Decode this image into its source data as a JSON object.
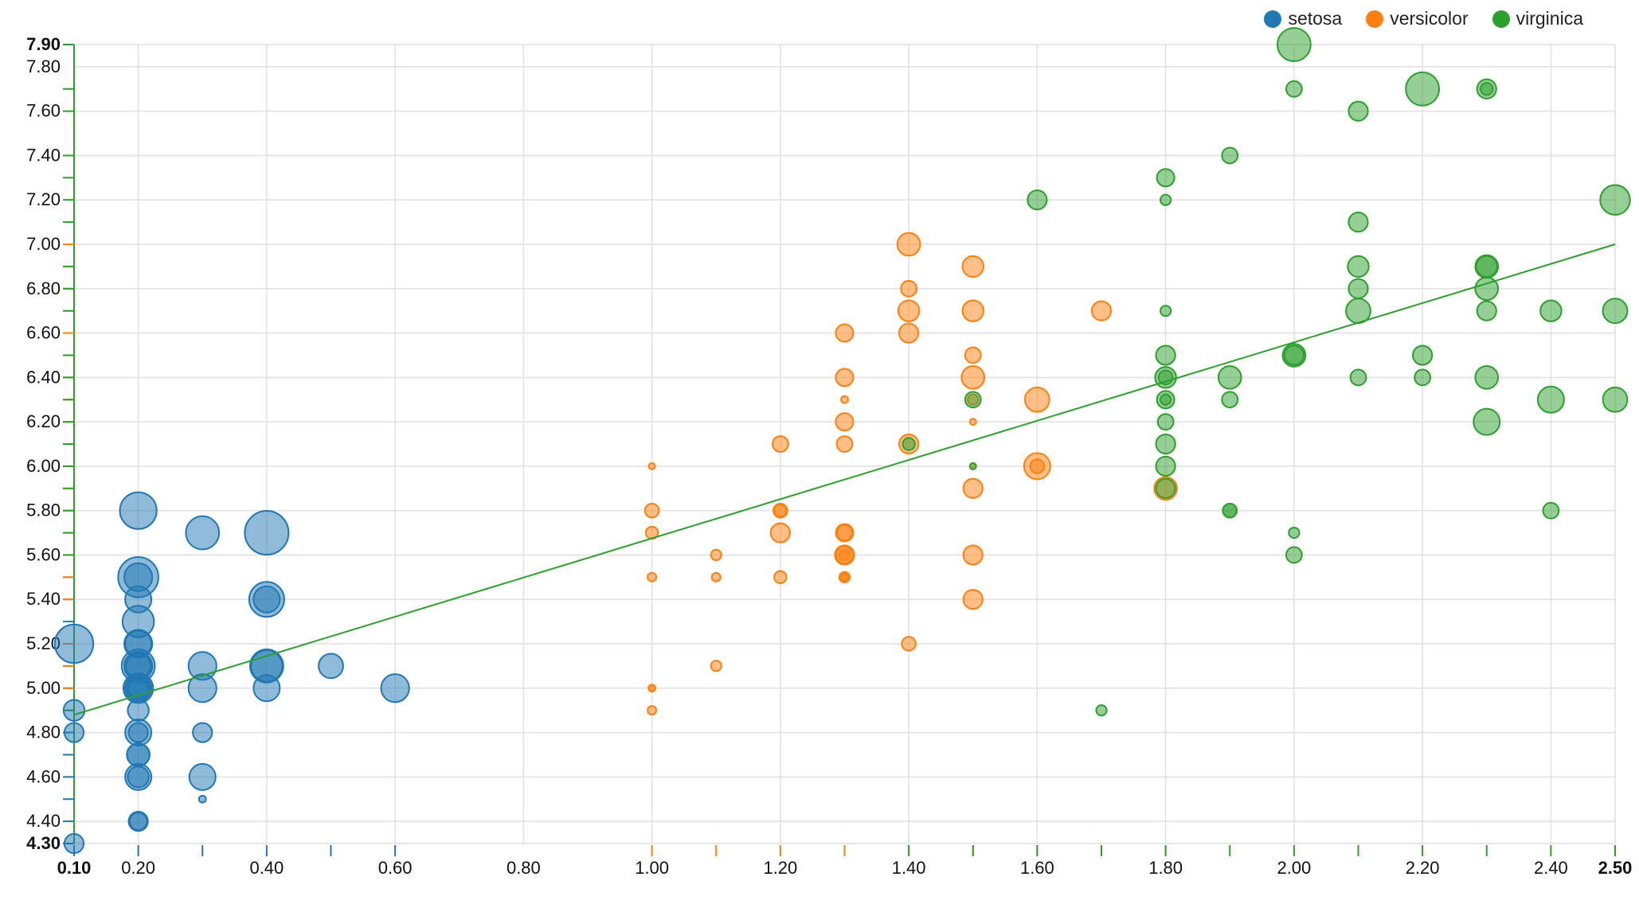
{
  "chart_data": {
    "type": "scatter",
    "title": "",
    "xlabel": "",
    "ylabel": "",
    "xlim": [
      0.1,
      2.5
    ],
    "ylim": [
      4.3,
      7.9
    ],
    "x_ticks": [
      "0.10",
      "0.20",
      "0.40",
      "0.60",
      "0.80",
      "1.00",
      "1.20",
      "1.40",
      "1.60",
      "1.80",
      "2.00",
      "2.20",
      "2.40",
      "2.50"
    ],
    "y_ticks": [
      "4.30",
      "4.40",
      "4.60",
      "4.80",
      "5.00",
      "5.20",
      "5.40",
      "5.60",
      "5.80",
      "6.00",
      "6.20",
      "6.40",
      "6.60",
      "6.80",
      "7.00",
      "7.20",
      "7.40",
      "7.60",
      "7.80",
      "7.90"
    ],
    "grid": true,
    "legend_position": "top-right",
    "trendline": {
      "x1": 0.1,
      "y1": 4.88,
      "x2": 2.5,
      "y2": 7.0,
      "color": "#2ca02c"
    },
    "series": [
      {
        "name": "setosa",
        "color": "#1f77b4",
        "points": [
          [
            0.1,
            4.3,
            3.0
          ],
          [
            0.1,
            4.9,
            3.1
          ],
          [
            0.1,
            4.8,
            3.0
          ],
          [
            0.1,
            5.2,
            4.1
          ],
          [
            0.2,
            5.8,
            4.0
          ],
          [
            0.2,
            5.5,
            3.5
          ],
          [
            0.2,
            5.5,
            4.2
          ],
          [
            0.2,
            5.4,
            3.4
          ],
          [
            0.2,
            5.3,
            3.7
          ],
          [
            0.2,
            5.2,
            3.5
          ],
          [
            0.2,
            5.2,
            3.4
          ],
          [
            0.2,
            5.1,
            3.5
          ],
          [
            0.2,
            5.1,
            3.3
          ],
          [
            0.2,
            5.1,
            3.8
          ],
          [
            0.2,
            5.0,
            3.6
          ],
          [
            0.2,
            5.0,
            3.4
          ],
          [
            0.2,
            5.0,
            3.2
          ],
          [
            0.2,
            5.0,
            3.0
          ],
          [
            0.2,
            4.9,
            3.1
          ],
          [
            0.2,
            4.8,
            3.4
          ],
          [
            0.2,
            4.8,
            3.0
          ],
          [
            0.2,
            4.7,
            3.2
          ],
          [
            0.2,
            4.7,
            3.2
          ],
          [
            0.2,
            4.6,
            3.4
          ],
          [
            0.2,
            4.6,
            3.1
          ],
          [
            0.2,
            4.4,
            2.9
          ],
          [
            0.2,
            4.4,
            3.0
          ],
          [
            0.3,
            5.7,
            3.8
          ],
          [
            0.3,
            5.1,
            3.5
          ],
          [
            0.3,
            5.0,
            3.5
          ],
          [
            0.3,
            4.8,
            3.0
          ],
          [
            0.3,
            4.6,
            3.4
          ],
          [
            0.3,
            4.5,
            2.3
          ],
          [
            0.4,
            5.7,
            4.4
          ],
          [
            0.4,
            5.4,
            3.9
          ],
          [
            0.4,
            5.4,
            3.4
          ],
          [
            0.4,
            5.1,
            3.8
          ],
          [
            0.4,
            5.1,
            3.7
          ],
          [
            0.4,
            5.0,
            3.4
          ],
          [
            0.5,
            5.1,
            3.3
          ],
          [
            0.6,
            5.0,
            3.5
          ]
        ]
      },
      {
        "name": "versicolor",
        "color": "#ff7f0e",
        "points": [
          [
            1.0,
            6.0,
            2.2
          ],
          [
            1.0,
            5.8,
            2.7
          ],
          [
            1.0,
            5.7,
            2.6
          ],
          [
            1.0,
            5.5,
            2.4
          ],
          [
            1.0,
            5.0,
            2.3
          ],
          [
            1.0,
            5.0,
            2.0
          ],
          [
            1.0,
            4.9,
            2.4
          ],
          [
            1.1,
            5.6,
            2.5
          ],
          [
            1.1,
            5.5,
            2.4
          ],
          [
            1.1,
            5.1,
            2.5
          ],
          [
            1.2,
            6.1,
            2.8
          ],
          [
            1.2,
            5.8,
            2.7
          ],
          [
            1.2,
            5.8,
            2.6
          ],
          [
            1.2,
            5.7,
            3.0
          ],
          [
            1.2,
            5.5,
            2.6
          ],
          [
            1.3,
            6.6,
            2.9
          ],
          [
            1.3,
            6.4,
            2.9
          ],
          [
            1.3,
            6.3,
            2.3
          ],
          [
            1.3,
            6.2,
            2.9
          ],
          [
            1.3,
            6.1,
            2.8
          ],
          [
            1.3,
            5.7,
            2.8
          ],
          [
            1.3,
            5.7,
            2.9
          ],
          [
            1.3,
            5.6,
            2.9
          ],
          [
            1.3,
            5.6,
            3.0
          ],
          [
            1.3,
            5.6,
            2.5
          ],
          [
            1.3,
            5.5,
            2.5
          ],
          [
            1.3,
            5.5,
            2.3
          ],
          [
            1.3,
            5.5,
            2.3
          ],
          [
            1.4,
            7.0,
            3.2
          ],
          [
            1.4,
            6.8,
            2.8
          ],
          [
            1.4,
            6.7,
            3.1
          ],
          [
            1.4,
            6.6,
            3.0
          ],
          [
            1.4,
            6.1,
            3.0
          ],
          [
            1.4,
            5.2,
            2.7
          ],
          [
            1.5,
            6.9,
            3.1
          ],
          [
            1.5,
            6.7,
            3.1
          ],
          [
            1.5,
            6.5,
            2.8
          ],
          [
            1.5,
            6.4,
            3.2
          ],
          [
            1.5,
            6.3,
            2.5
          ],
          [
            1.5,
            6.2,
            2.2
          ],
          [
            1.5,
            6.0,
            2.2
          ],
          [
            1.5,
            5.9,
            3.0
          ],
          [
            1.5,
            5.6,
            3.0
          ],
          [
            1.5,
            5.4,
            3.0
          ],
          [
            1.6,
            6.3,
            3.3
          ],
          [
            1.6,
            6.0,
            3.4
          ],
          [
            1.6,
            6.0,
            2.7
          ],
          [
            1.7,
            6.7,
            3.0
          ],
          [
            1.8,
            5.9,
            3.2
          ]
        ]
      },
      {
        "name": "virginica",
        "color": "#2ca02c",
        "points": [
          [
            1.4,
            6.1,
            2.6
          ],
          [
            1.5,
            6.3,
            2.8
          ],
          [
            1.5,
            6.0,
            2.2
          ],
          [
            1.6,
            7.2,
            3.0
          ],
          [
            1.7,
            4.9,
            2.5
          ],
          [
            1.8,
            7.3,
            2.9
          ],
          [
            1.8,
            7.2,
            2.5
          ],
          [
            1.8,
            6.7,
            2.5
          ],
          [
            1.8,
            6.5,
            3.0
          ],
          [
            1.8,
            6.4,
            3.1
          ],
          [
            1.8,
            6.4,
            2.7
          ],
          [
            1.8,
            6.3,
            2.9
          ],
          [
            1.8,
            6.3,
            2.5
          ],
          [
            1.8,
            6.2,
            2.8
          ],
          [
            1.8,
            6.1,
            3.0
          ],
          [
            1.8,
            6.0,
            3.0
          ],
          [
            1.8,
            5.9,
            3.0
          ],
          [
            1.9,
            7.4,
            2.8
          ],
          [
            1.9,
            6.4,
            3.2
          ],
          [
            1.9,
            6.3,
            2.8
          ],
          [
            1.9,
            5.8,
            2.7
          ],
          [
            1.9,
            5.8,
            2.7
          ],
          [
            2.0,
            7.9,
            3.8
          ],
          [
            2.0,
            7.7,
            2.8
          ],
          [
            2.0,
            6.5,
            3.2
          ],
          [
            2.0,
            6.5,
            3.0
          ],
          [
            2.0,
            5.7,
            2.5
          ],
          [
            2.0,
            5.6,
            2.8
          ],
          [
            2.1,
            7.6,
            3.0
          ],
          [
            2.1,
            7.1,
            3.0
          ],
          [
            2.1,
            6.9,
            3.1
          ],
          [
            2.1,
            6.8,
            3.0
          ],
          [
            2.1,
            6.7,
            3.3
          ],
          [
            2.1,
            6.4,
            2.8
          ],
          [
            2.2,
            7.7,
            3.8
          ],
          [
            2.2,
            6.5,
            3.0
          ],
          [
            2.2,
            6.4,
            2.8
          ],
          [
            2.3,
            7.7,
            2.6
          ],
          [
            2.3,
            7.7,
            3.0
          ],
          [
            2.3,
            6.9,
            3.1
          ],
          [
            2.3,
            6.9,
            3.2
          ],
          [
            2.3,
            6.8,
            3.2
          ],
          [
            2.3,
            6.7,
            3.0
          ],
          [
            2.3,
            6.4,
            3.2
          ],
          [
            2.3,
            6.2,
            3.4
          ],
          [
            2.4,
            6.7,
            3.1
          ],
          [
            2.4,
            6.3,
            3.4
          ],
          [
            2.4,
            5.8,
            2.8
          ],
          [
            2.5,
            7.2,
            3.6
          ],
          [
            2.5,
            6.7,
            3.3
          ],
          [
            2.5,
            6.3,
            3.3
          ]
        ]
      }
    ]
  }
}
